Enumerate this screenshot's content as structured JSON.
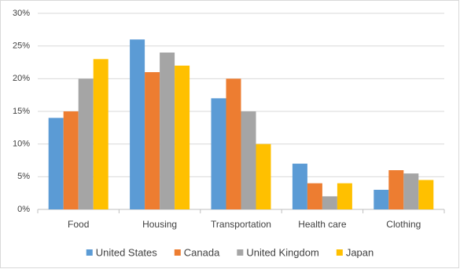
{
  "chart_data": {
    "type": "bar",
    "categories": [
      "Food",
      "Housing",
      "Transportation",
      "Health care",
      "Clothing"
    ],
    "series": [
      {
        "name": "United States",
        "color": "#5b9bd5",
        "values": [
          14,
          26,
          17,
          7,
          3
        ]
      },
      {
        "name": "Canada",
        "color": "#ed7d31",
        "values": [
          15,
          21,
          20,
          4,
          6
        ]
      },
      {
        "name": "United Kingdom",
        "color": "#a5a5a5",
        "values": [
          20,
          24,
          15,
          2,
          5.5
        ]
      },
      {
        "name": "Japan",
        "color": "#ffc000",
        "values": [
          23,
          22,
          10,
          4,
          4.5
        ]
      }
    ],
    "ylim": [
      0,
      30
    ],
    "yticks": [
      {
        "value": 0,
        "label": "0%"
      },
      {
        "value": 5,
        "label": "5%"
      },
      {
        "value": 10,
        "label": "10%"
      },
      {
        "value": 15,
        "label": "15%"
      },
      {
        "value": 20,
        "label": "20%"
      },
      {
        "value": 25,
        "label": "25%"
      },
      {
        "value": 30,
        "label": "30%"
      }
    ],
    "grid": true,
    "legend": "bottom"
  }
}
